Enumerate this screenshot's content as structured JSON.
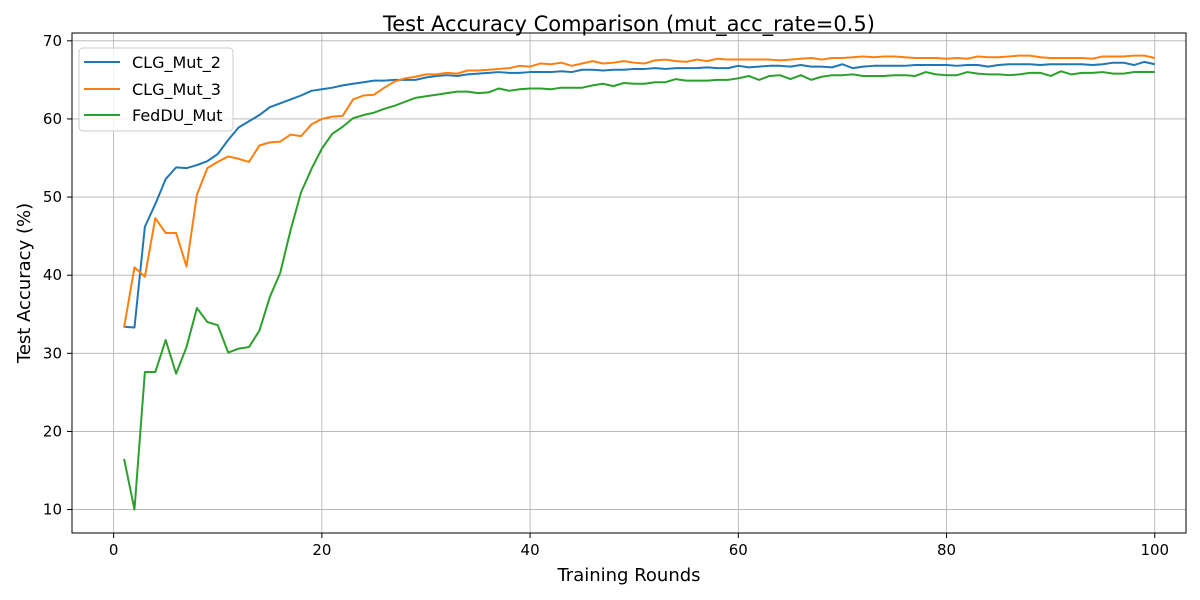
{
  "chart_data": {
    "type": "line",
    "title": "Test Accuracy Comparison (mut_acc_rate=0.5)",
    "xlabel": "Training Rounds",
    "ylabel": "Test Accuracy (%)",
    "xlim": [
      -4,
      103
    ],
    "ylim": [
      7,
      71
    ],
    "xticks": [
      0,
      20,
      40,
      60,
      80,
      100
    ],
    "yticks": [
      10,
      20,
      30,
      40,
      50,
      60,
      70
    ],
    "grid": true,
    "legend_position": "upper-left",
    "series": [
      {
        "name": "CLG_Mut_2",
        "color": "#1f77b4",
        "values": [
          33.4,
          33.3,
          46.2,
          49.1,
          52.3,
          53.8,
          53.7,
          54.1,
          54.6,
          55.5,
          57.3,
          58.9,
          59.7,
          60.5,
          61.5,
          62.0,
          62.5,
          63.0,
          63.6,
          63.8,
          64.0,
          64.3,
          64.5,
          64.7,
          64.9,
          64.9,
          65.0,
          65.0,
          65.0,
          65.3,
          65.5,
          65.6,
          65.5,
          65.7,
          65.8,
          65.9,
          66.0,
          65.9,
          65.9,
          66.0,
          66.0,
          66.0,
          66.1,
          66.0,
          66.3,
          66.3,
          66.2,
          66.3,
          66.3,
          66.4,
          66.4,
          66.5,
          66.4,
          66.5,
          66.5,
          66.5,
          66.6,
          66.5,
          66.5,
          66.8,
          66.6,
          66.7,
          66.8,
          66.8,
          66.7,
          66.9,
          66.7,
          66.7,
          66.6,
          67.0,
          66.5,
          66.7,
          66.8,
          66.8,
          66.8,
          66.8,
          66.9,
          66.9,
          66.9,
          66.9,
          66.8,
          66.9,
          66.9,
          66.7,
          66.9,
          67.0,
          67.0,
          67.0,
          66.9,
          67.0,
          67.0,
          67.0,
          67.0,
          66.9,
          67.0,
          67.2,
          67.2,
          66.9,
          67.3,
          67.0
        ]
      },
      {
        "name": "CLG_Mut_3",
        "color": "#ff7f0e",
        "values": [
          33.3,
          41.0,
          39.8,
          47.3,
          45.4,
          45.4,
          41.1,
          50.3,
          53.7,
          54.5,
          55.2,
          54.9,
          54.5,
          56.6,
          57.0,
          57.1,
          58.0,
          57.8,
          59.3,
          60.0,
          60.3,
          60.4,
          62.5,
          63.0,
          63.1,
          64.0,
          64.8,
          65.2,
          65.4,
          65.7,
          65.7,
          65.9,
          65.8,
          66.2,
          66.2,
          66.3,
          66.4,
          66.5,
          66.8,
          66.7,
          67.1,
          67.0,
          67.2,
          66.8,
          67.1,
          67.4,
          67.1,
          67.2,
          67.4,
          67.2,
          67.1,
          67.5,
          67.6,
          67.4,
          67.3,
          67.6,
          67.4,
          67.7,
          67.6,
          67.6,
          67.6,
          67.6,
          67.6,
          67.5,
          67.6,
          67.7,
          67.8,
          67.6,
          67.8,
          67.8,
          67.9,
          68.0,
          67.9,
          68.0,
          68.0,
          67.9,
          67.8,
          67.8,
          67.8,
          67.7,
          67.8,
          67.7,
          68.0,
          67.9,
          67.9,
          68.0,
          68.1,
          68.1,
          67.9,
          67.8,
          67.8,
          67.8,
          67.8,
          67.7,
          68.0,
          68.0,
          68.0,
          68.1,
          68.1,
          67.8
        ]
      },
      {
        "name": "FedDU_Mut",
        "color": "#2ca02c",
        "values": [
          16.5,
          10.0,
          27.6,
          27.6,
          31.7,
          27.4,
          30.8,
          35.8,
          34.0,
          33.6,
          30.1,
          30.6,
          30.8,
          32.9,
          37.2,
          40.3,
          45.8,
          50.6,
          53.6,
          56.2,
          58.1,
          59.0,
          60.1,
          60.5,
          60.8,
          61.3,
          61.7,
          62.2,
          62.7,
          62.9,
          63.1,
          63.3,
          63.5,
          63.5,
          63.3,
          63.4,
          63.9,
          63.6,
          63.8,
          63.9,
          63.9,
          63.8,
          64.0,
          64.0,
          64.0,
          64.3,
          64.5,
          64.2,
          64.6,
          64.5,
          64.5,
          64.7,
          64.7,
          65.1,
          64.9,
          64.9,
          64.9,
          65.0,
          65.0,
          65.2,
          65.5,
          65.0,
          65.5,
          65.6,
          65.1,
          65.6,
          65.0,
          65.4,
          65.6,
          65.6,
          65.7,
          65.5,
          65.5,
          65.5,
          65.6,
          65.6,
          65.5,
          66.0,
          65.7,
          65.6,
          65.6,
          66.0,
          65.8,
          65.7,
          65.7,
          65.6,
          65.7,
          65.9,
          65.9,
          65.5,
          66.1,
          65.7,
          65.9,
          65.9,
          66.0,
          65.8,
          65.8,
          66.0,
          66.0,
          66.0
        ]
      }
    ]
  }
}
